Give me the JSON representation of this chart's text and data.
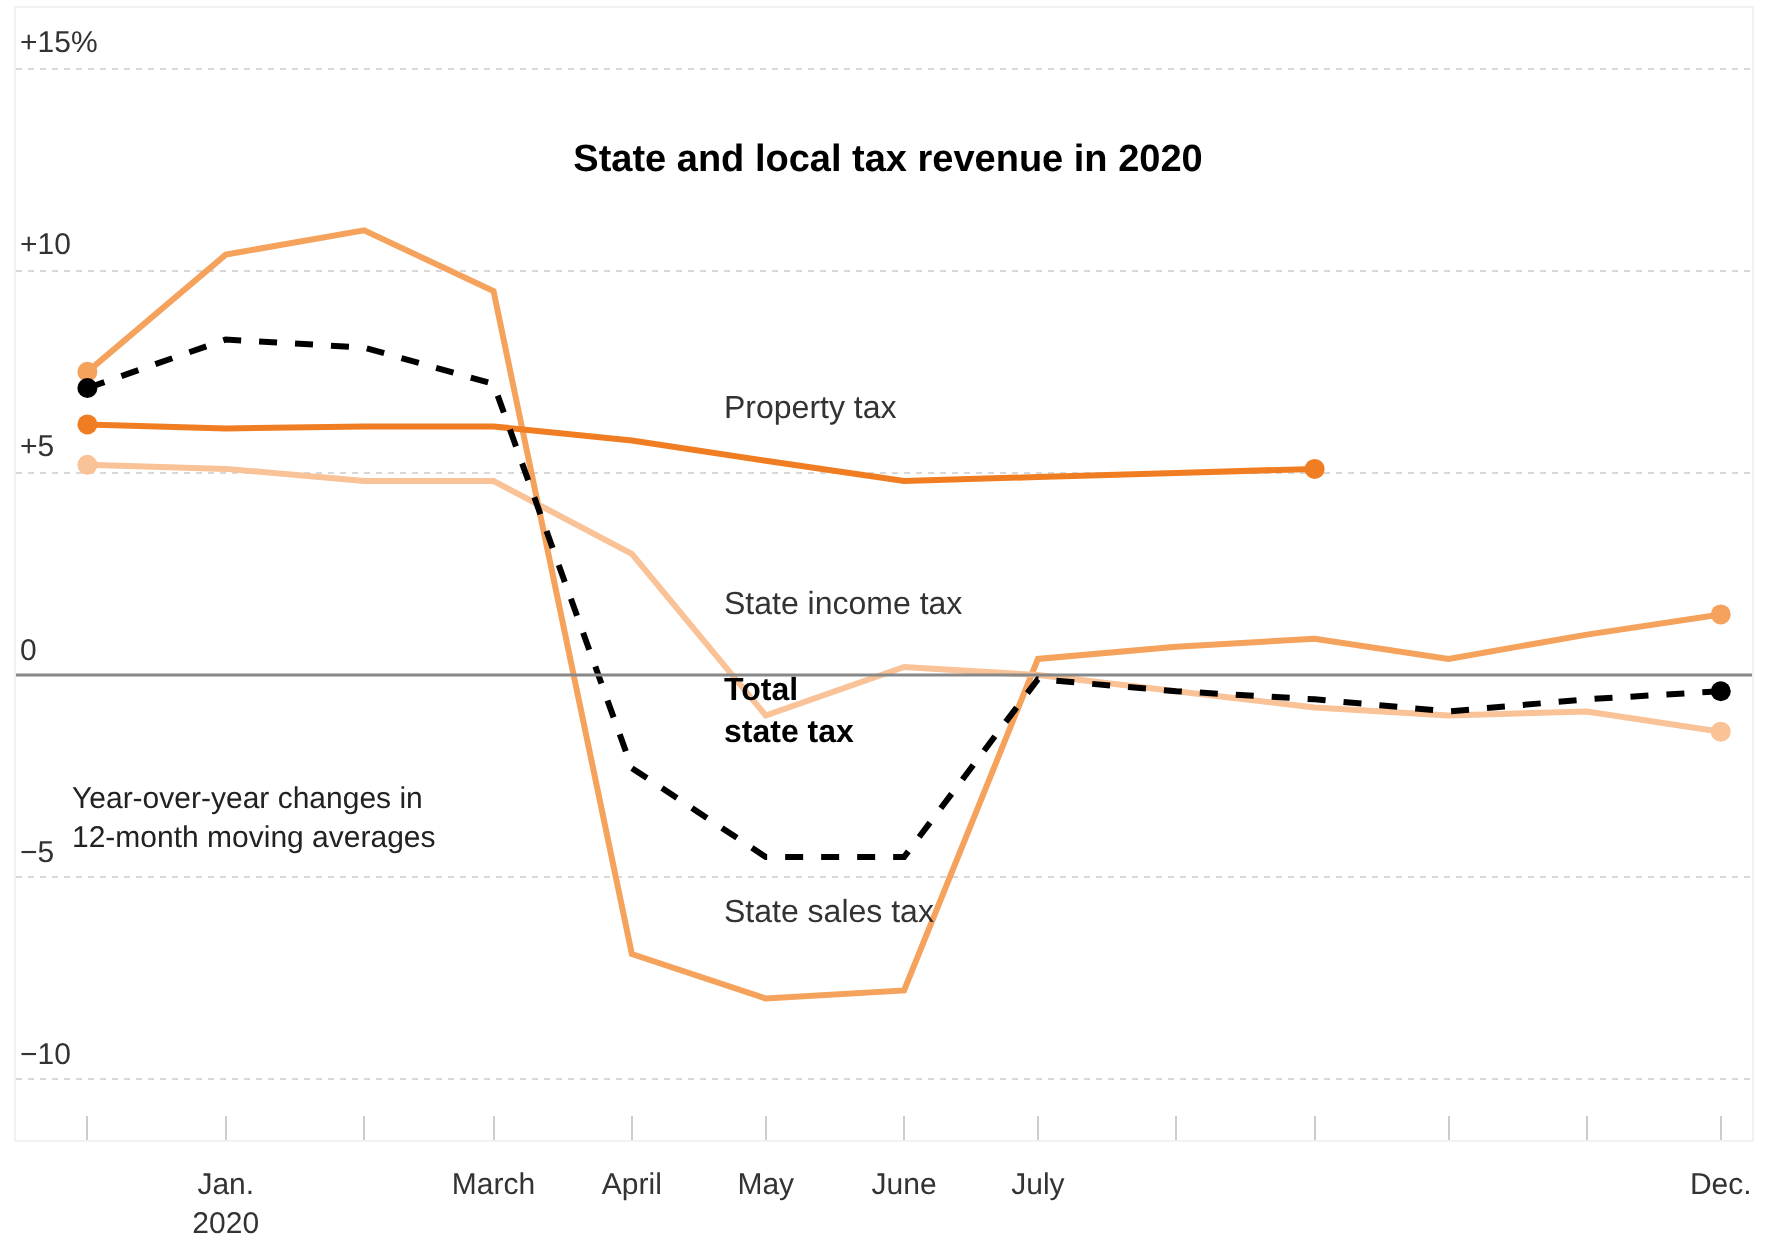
{
  "chart_data": {
    "type": "line",
    "title": "State and local tax revenue in 2020",
    "x": [
      "2019-12",
      "2020-01",
      "2020-02",
      "2020-03",
      "2020-04",
      "2020-05",
      "2020-06",
      "2020-07",
      "2020-08",
      "2020-09",
      "2020-10",
      "2020-11",
      "2020-12"
    ],
    "series": [
      {
        "name": "State sales tax",
        "color": "#f5a25c",
        "values": [
          7.5,
          10.4,
          11.0,
          9.5,
          -6.9,
          -8.0,
          -7.8,
          0.4,
          0.7,
          0.9,
          0.4,
          1.0,
          1.5
        ]
      },
      {
        "name": "Property tax",
        "color": "#f07d22",
        "values": [
          6.2,
          6.1,
          6.15,
          6.15,
          5.8,
          5.3,
          4.8,
          4.9,
          5.0,
          5.1,
          null,
          null,
          null
        ]
      },
      {
        "name": "State income tax",
        "color": "#f9c297",
        "values": [
          5.2,
          5.1,
          4.8,
          4.8,
          3.0,
          -1.0,
          0.2,
          0.0,
          -0.4,
          -0.8,
          -1.0,
          -0.9,
          -1.4
        ]
      },
      {
        "name": "Total\nstate tax",
        "color": "#000000",
        "line_style": "dashed",
        "values": [
          7.1,
          8.3,
          8.1,
          7.2,
          -2.3,
          -4.5,
          -4.5,
          -0.1,
          -0.4,
          -0.6,
          -0.9,
          -0.6,
          -0.4
        ]
      }
    ],
    "ylim": [
      -11.5,
      16.5
    ],
    "yticks": [
      {
        "value": -10,
        "label": "−10"
      },
      {
        "value": -5,
        "label": "−5"
      },
      0,
      {
        "value": 5,
        "label": "+5"
      },
      {
        "value": 10,
        "label": "+10"
      },
      {
        "value": 15,
        "label": "+15%"
      }
    ],
    "xlim": [
      "2019-11-15",
      "2020-12-08"
    ],
    "xticks": [
      {
        "value": "2019-12",
        "label": null
      },
      {
        "value": "2020-01",
        "label": "Jan.\n2020"
      },
      {
        "value": "2020-02",
        "label": null
      },
      {
        "value": "2020-03",
        "label": "March"
      },
      {
        "value": "2020-04",
        "label": "April"
      },
      {
        "value": "2020-05",
        "label": "May"
      },
      {
        "value": "2020-06",
        "label": "June"
      },
      {
        "value": "2020-07",
        "label": "July"
      },
      {
        "value": "2020-08",
        "label": null
      },
      {
        "value": "2020-09",
        "label": null
      },
      {
        "value": "2020-10",
        "label": null
      },
      {
        "value": "2020-11",
        "label": null
      },
      {
        "value": "2020-12",
        "label": "Dec."
      }
    ],
    "ref_lines": [
      {
        "axis": "y",
        "value": 0,
        "color": "#888888"
      }
    ],
    "annotations": [
      "Year-over-year changes in\n12-month moving averages"
    ],
    "grid": "y",
    "legend": false,
    "line_style": "solid"
  }
}
